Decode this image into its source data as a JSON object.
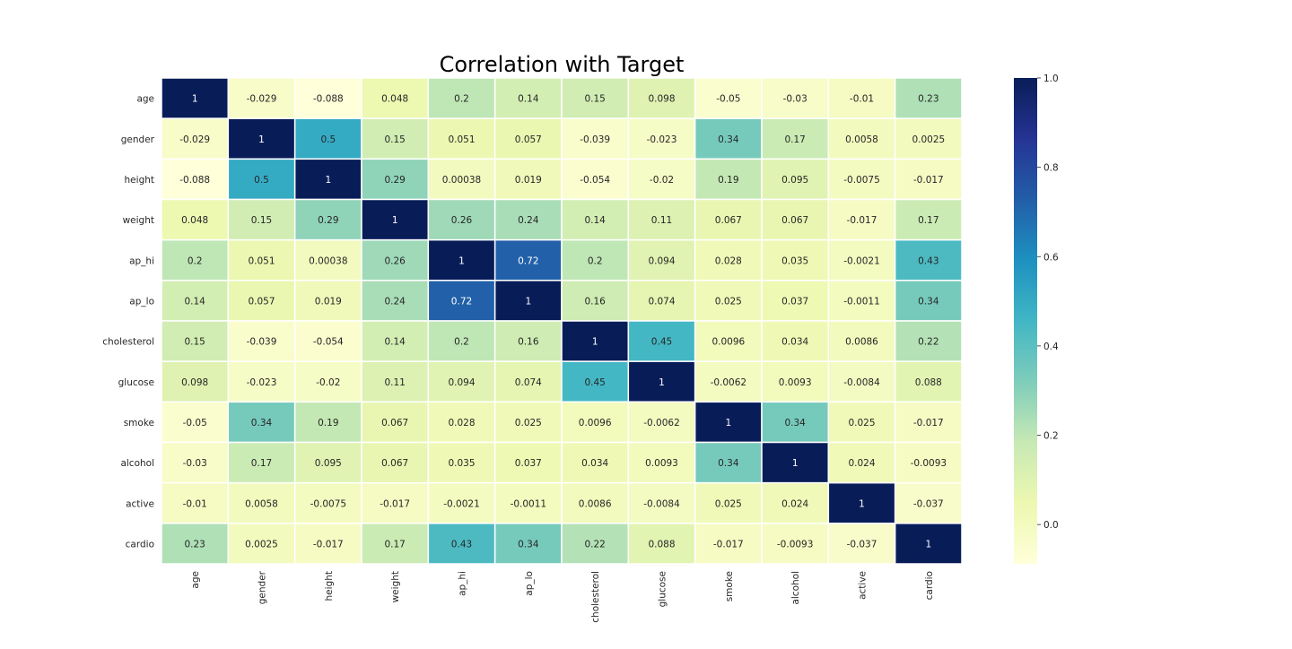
{
  "chart_data": {
    "type": "heatmap",
    "title": "Correlation with Target",
    "row_labels": [
      "age",
      "gender",
      "height",
      "weight",
      "ap_hi",
      "ap_lo",
      "cholesterol",
      "glucose",
      "smoke",
      "alcohol",
      "active",
      "cardio"
    ],
    "col_labels": [
      "age",
      "gender",
      "height",
      "weight",
      "ap_hi",
      "ap_lo",
      "cholesterol",
      "glucose",
      "smoke",
      "alcohol",
      "active",
      "cardio"
    ],
    "values": [
      [
        1,
        -0.029,
        -0.088,
        0.048,
        0.2,
        0.14,
        0.15,
        0.098,
        -0.05,
        -0.03,
        -0.01,
        0.23
      ],
      [
        -0.029,
        1,
        0.5,
        0.15,
        0.051,
        0.057,
        -0.039,
        -0.023,
        0.34,
        0.17,
        0.0058,
        0.0025
      ],
      [
        -0.088,
        0.5,
        1,
        0.29,
        0.00038,
        0.019,
        -0.054,
        -0.02,
        0.19,
        0.095,
        -0.0075,
        -0.017
      ],
      [
        0.048,
        0.15,
        0.29,
        1,
        0.26,
        0.24,
        0.14,
        0.11,
        0.067,
        0.067,
        -0.017,
        0.17
      ],
      [
        0.2,
        0.051,
        0.00038,
        0.26,
        1,
        0.72,
        0.2,
        0.094,
        0.028,
        0.035,
        -0.0021,
        0.43
      ],
      [
        0.14,
        0.057,
        0.019,
        0.24,
        0.72,
        1,
        0.16,
        0.074,
        0.025,
        0.037,
        -0.0011,
        0.34
      ],
      [
        0.15,
        -0.039,
        -0.054,
        0.14,
        0.2,
        0.16,
        1,
        0.45,
        0.0096,
        0.034,
        0.0086,
        0.22
      ],
      [
        0.098,
        -0.023,
        -0.02,
        0.11,
        0.094,
        0.074,
        0.45,
        1,
        -0.0062,
        0.0093,
        -0.0084,
        0.088
      ],
      [
        -0.05,
        0.34,
        0.19,
        0.067,
        0.028,
        0.025,
        0.0096,
        -0.0062,
        1,
        0.34,
        0.025,
        -0.017
      ],
      [
        -0.03,
        0.17,
        0.095,
        0.067,
        0.035,
        0.037,
        0.034,
        0.0093,
        0.34,
        1,
        0.024,
        -0.0093
      ],
      [
        -0.01,
        0.0058,
        -0.0075,
        -0.017,
        -0.0021,
        -0.0011,
        0.0086,
        -0.0084,
        0.025,
        0.024,
        1,
        -0.037
      ],
      [
        0.23,
        0.0025,
        -0.017,
        0.17,
        0.43,
        0.34,
        0.22,
        0.088,
        -0.017,
        -0.0093,
        -0.037,
        1
      ]
    ],
    "colormap": "YlGnBu",
    "color_range": [
      -0.088,
      1.0
    ],
    "colorbar_ticks": [
      1.0,
      0.8,
      0.6,
      0.4,
      0.2,
      0.0
    ],
    "colorbar_tick_labels": [
      "1.0",
      "0.8",
      "0.6",
      "0.4",
      "0.2",
      "0.0"
    ],
    "cell_separator_color": "#ffffff",
    "annotated": true,
    "colorbar_position": "right"
  }
}
